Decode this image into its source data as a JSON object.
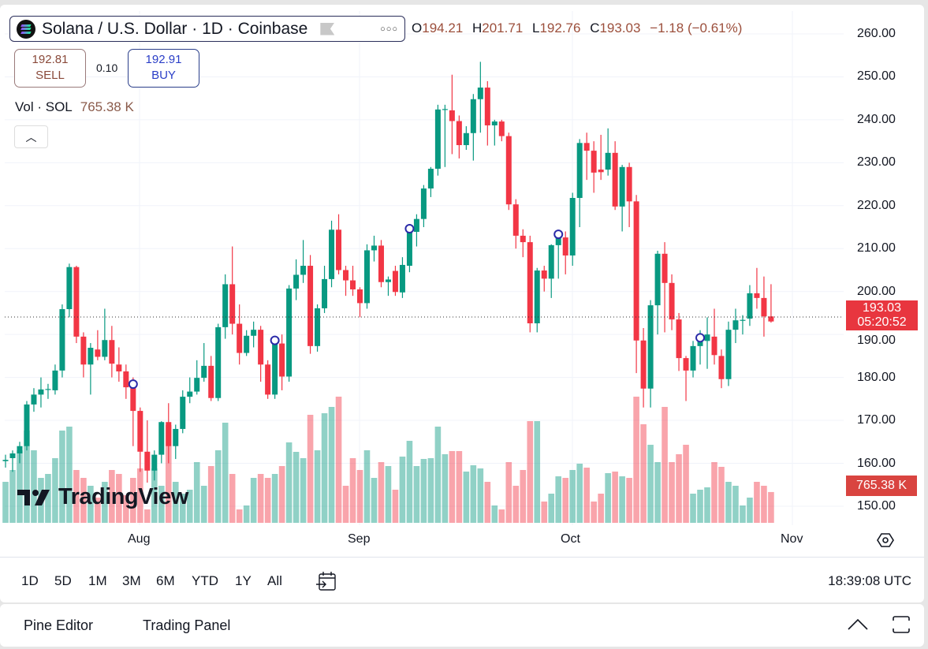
{
  "legend": {
    "title": "Solana / U.S. Dollar · 1D · Coinbase",
    "more_icon": "ellipsis-icon",
    "ohlc": {
      "o_label": "O",
      "o": "194.21",
      "h_label": "H",
      "h": "201.71",
      "l_label": "L",
      "l": "192.76",
      "c_label": "C",
      "c": "193.03",
      "change": "−1.18 (−0.61%)"
    }
  },
  "trade": {
    "sell_price": "192.81",
    "sell_label": "SELL",
    "spread": "0.10",
    "buy_price": "192.91",
    "buy_label": "BUY"
  },
  "volume_legend": {
    "label": "Vol · SOL",
    "value": "765.38 K"
  },
  "price_axis": [
    "260.00",
    "250.00",
    "240.00",
    "230.00",
    "220.00",
    "210.00",
    "200.00",
    "190.00",
    "180.00",
    "170.00",
    "160.00",
    "150.00"
  ],
  "current_price": {
    "value": "193.03",
    "countdown": "05:20:52"
  },
  "volume_tag": "765.38 K",
  "time_axis": [
    "Aug",
    "Sep",
    "Oct",
    "Nov"
  ],
  "logo_text": "TradingView",
  "colors": {
    "up": "#089981",
    "down": "#f23645",
    "marker": "#2a2aa8"
  },
  "toolbar": {
    "ranges": [
      "1D",
      "5D",
      "1M",
      "3M",
      "6M",
      "YTD",
      "1Y",
      "All"
    ],
    "clock": "18:39:08 UTC"
  },
  "bottom_panel": {
    "tabs": [
      "Pine Editor",
      "Trading Panel"
    ]
  },
  "chart_data": {
    "type": "candlestick",
    "ylim": [
      146,
      262
    ],
    "x_ticks": [
      "Aug",
      "Sep",
      "Oct",
      "Nov"
    ],
    "columns": [
      "open",
      "high",
      "low",
      "close",
      "volume_k"
    ],
    "event_marker_indices": [
      18,
      38,
      57,
      78,
      98
    ],
    "candles": [
      [
        160.5,
        162,
        159,
        160.8,
        1019
      ],
      [
        161.2,
        163,
        158,
        162.3,
        1313
      ],
      [
        162.3,
        165,
        160,
        164,
        1803
      ],
      [
        164,
        174.5,
        163,
        173.7,
        2293
      ],
      [
        173.7,
        177.5,
        172,
        176,
        1803
      ],
      [
        176,
        180,
        173,
        177.2,
        1117
      ],
      [
        177.2,
        178.5,
        175,
        177.3,
        1215
      ],
      [
        177,
        183,
        176,
        181.6,
        1607
      ],
      [
        181.6,
        197,
        180,
        195.9,
        2293
      ],
      [
        195.9,
        206.5,
        194,
        205.7,
        2391
      ],
      [
        205.7,
        206,
        188,
        189.5,
        1313
      ],
      [
        189.5,
        190.5,
        180,
        183,
        1117
      ],
      [
        183,
        188,
        176,
        186.9,
        921
      ],
      [
        186.5,
        191,
        184,
        184.8,
        627
      ],
      [
        184.8,
        196,
        184,
        188.7,
        1019
      ],
      [
        188.7,
        192,
        180,
        183.2,
        1313
      ],
      [
        183,
        187,
        179,
        181.4,
        1215
      ],
      [
        181.4,
        183,
        175,
        177.7,
        686
      ],
      [
        177.7,
        180,
        164,
        172.2,
        1117
      ],
      [
        172.2,
        173,
        158,
        162.7,
        1352
      ],
      [
        162.7,
        170,
        155.5,
        158.3,
        333
      ],
      [
        158.3,
        163,
        156,
        162,
        1352
      ],
      [
        162,
        169.8,
        160,
        169.6,
        921
      ],
      [
        169.6,
        174,
        160,
        164,
        2430
      ],
      [
        164,
        169,
        161,
        168,
        1019
      ],
      [
        168,
        177,
        167,
        175.5,
        725
      ],
      [
        175.5,
        180,
        174,
        176.7,
        823
      ],
      [
        176.7,
        184,
        176,
        179.9,
        1509
      ],
      [
        179.9,
        188,
        179,
        182.7,
        921
      ],
      [
        182.7,
        185,
        174.5,
        175.2,
        1411
      ],
      [
        175.2,
        192.5,
        174.5,
        191.7,
        1803
      ],
      [
        191.7,
        204,
        189,
        201.7,
        2489
      ],
      [
        201.7,
        210.5,
        190,
        192.5,
        1215
      ],
      [
        192.5,
        197,
        183,
        185.7,
        333
      ],
      [
        185.7,
        191,
        185,
        189.7,
        431
      ],
      [
        189.7,
        193,
        187,
        191.1,
        1117
      ],
      [
        191.1,
        192,
        179,
        183,
        1215
      ],
      [
        183,
        184,
        175,
        176,
        1117
      ],
      [
        176,
        189,
        175,
        187.9,
        1215
      ],
      [
        187.9,
        190,
        177,
        180.2,
        1411
      ],
      [
        180.2,
        201.5,
        179,
        200.7,
        1999
      ],
      [
        200.7,
        207.5,
        198,
        203.9,
        1764
      ],
      [
        203.9,
        212,
        202,
        206,
        1607
      ],
      [
        206,
        208.5,
        185.5,
        187.3,
        2685
      ],
      [
        187.3,
        197,
        186,
        196.1,
        1803
      ],
      [
        196.1,
        206,
        195,
        202.9,
        2724
      ],
      [
        202.9,
        216.5,
        201,
        214.4,
        2881
      ],
      [
        214.4,
        218,
        204,
        205,
        3136
      ],
      [
        205,
        206,
        199,
        202.6,
        921
      ],
      [
        202.6,
        206,
        199,
        200.5,
        1607
      ],
      [
        200.5,
        201,
        194,
        197.3,
        1313
      ],
      [
        197.3,
        211,
        196,
        209.6,
        1803
      ],
      [
        209.6,
        213,
        207,
        210.7,
        1117
      ],
      [
        210.7,
        212,
        201,
        202.2,
        1509
      ],
      [
        202.2,
        203.5,
        199,
        202.8,
        1411
      ],
      [
        204.8,
        206,
        199,
        199.9,
        823
      ],
      [
        199.8,
        208,
        198.5,
        206.2,
        1646
      ],
      [
        206,
        214.5,
        204.5,
        213.9,
        2038
      ],
      [
        213.9,
        218,
        210.5,
        216.9,
        1411
      ],
      [
        216.9,
        224.8,
        215,
        224,
        1588
      ],
      [
        224,
        229,
        222,
        228.6,
        1607
      ],
      [
        228.6,
        243.5,
        227,
        242.4,
        2391
      ],
      [
        242.4,
        243.5,
        229,
        242.5,
        1705
      ],
      [
        242.2,
        250.5,
        232,
        239.7,
        1784
      ],
      [
        239.7,
        241,
        231,
        234.1,
        1784
      ],
      [
        234.1,
        238.5,
        233,
        236.9,
        1274
      ],
      [
        236.9,
        246,
        230.5,
        244.8,
        1431
      ],
      [
        244.8,
        253.5,
        237,
        247.5,
        1352
      ],
      [
        247.5,
        249,
        234,
        238.7,
        1019
      ],
      [
        238.7,
        240,
        234,
        239.6,
        431
      ],
      [
        239.6,
        240,
        235,
        236.2,
        333
      ],
      [
        236.2,
        237,
        219,
        220.3,
        1509
      ],
      [
        220.3,
        221.5,
        210,
        213,
        921
      ],
      [
        213,
        214.5,
        208,
        211.5,
        1313
      ],
      [
        211.5,
        213,
        190.5,
        192.6,
        2528
      ],
      [
        192.6,
        205.5,
        190.5,
        204.9,
        2528
      ],
      [
        204.9,
        206,
        200,
        203,
        529
      ],
      [
        203,
        211,
        198.5,
        210.8,
        725
      ],
      [
        210.8,
        214,
        203,
        212.6,
        1156
      ],
      [
        212.6,
        214,
        204,
        208.4,
        1117
      ],
      [
        208.4,
        223,
        206,
        221.8,
        1313
      ],
      [
        221.8,
        235.5,
        215,
        234.6,
        1470
      ],
      [
        234.6,
        237,
        226,
        232.8,
        1372
      ],
      [
        232.8,
        235,
        223,
        227.7,
        529
      ],
      [
        228.4,
        236.5,
        226,
        227.8,
        725
      ],
      [
        228.4,
        238,
        227,
        232.3,
        1235
      ],
      [
        232.3,
        235,
        219,
        219.8,
        1274
      ],
      [
        219.8,
        229.5,
        214,
        229,
        1156
      ],
      [
        229,
        230,
        215,
        221,
        1117
      ],
      [
        221,
        222.5,
        181,
        188.6,
        3136
      ],
      [
        188.6,
        191.5,
        173,
        177.4,
        2450
      ],
      [
        177.4,
        198,
        173,
        196.8,
        1940
      ],
      [
        196.8,
        209.5,
        190,
        208.8,
        1509
      ],
      [
        208.8,
        211.5,
        190.5,
        202,
        2881
      ],
      [
        202,
        204,
        191,
        193.5,
        1509
      ],
      [
        193.5,
        195,
        181.5,
        184.5,
        1705
      ],
      [
        184.5,
        185,
        174.5,
        181.6,
        1940
      ],
      [
        181.6,
        188.5,
        180,
        187.3,
        725
      ],
      [
        187.3,
        191,
        183,
        188.5,
        823
      ],
      [
        188.5,
        194,
        182,
        190,
        882
      ],
      [
        189.5,
        196,
        183,
        185.2,
        1509
      ],
      [
        185,
        186.5,
        177.5,
        179.6,
        1392
      ],
      [
        179.6,
        193,
        178,
        191.1,
        1019
      ],
      [
        191.1,
        196,
        188,
        193.3,
        921
      ],
      [
        193.3,
        194.5,
        190,
        193.4,
        431
      ],
      [
        193.7,
        201.5,
        192,
        199.6,
        627
      ],
      [
        199.6,
        205.5,
        196,
        198.5,
        1019
      ],
      [
        198.5,
        203.5,
        189.5,
        194.21,
        921
      ],
      [
        194.21,
        201.71,
        192.76,
        193.03,
        765.38
      ]
    ]
  }
}
